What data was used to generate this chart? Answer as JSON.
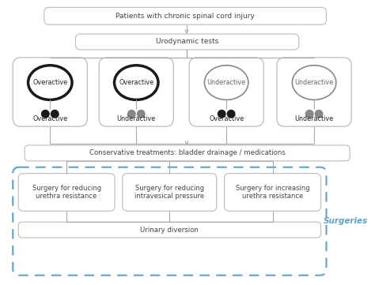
{
  "box1_text": "Patients with chronic spinal cord injury",
  "box2_text": "Urodynamic tests",
  "bladder_boxes": [
    {
      "top": "Overactive",
      "bottom": "Overactive"
    },
    {
      "top": "Overactive",
      "bottom": "Underactive"
    },
    {
      "top": "Underactive",
      "bottom": "Overactive"
    },
    {
      "top": "Underactive",
      "bottom": "Underactive"
    }
  ],
  "box_conservative": "Conservative treatments: bladder drainage / medications",
  "surgery_boxes": [
    "Surgery for reducing\nurethra resistance",
    "Surgery for reducing\nintravesical pressure",
    "Surgery for increasing\nurethra resistance"
  ],
  "box_urinary": "Urinary diversion",
  "surgeries_label": "Surgeries",
  "bg_color": "#ffffff",
  "box_edge_color": "#bbbbbb",
  "box_fill_color": "#ffffff",
  "line_color": "#aaaaaa",
  "dashed_box_color": "#5ba3c9",
  "surgeries_label_color": "#5ba3c9",
  "text_color": "#444444",
  "font_size": 6.5,
  "font_size_small": 6.0,
  "font_size_surgeries": 7.5
}
